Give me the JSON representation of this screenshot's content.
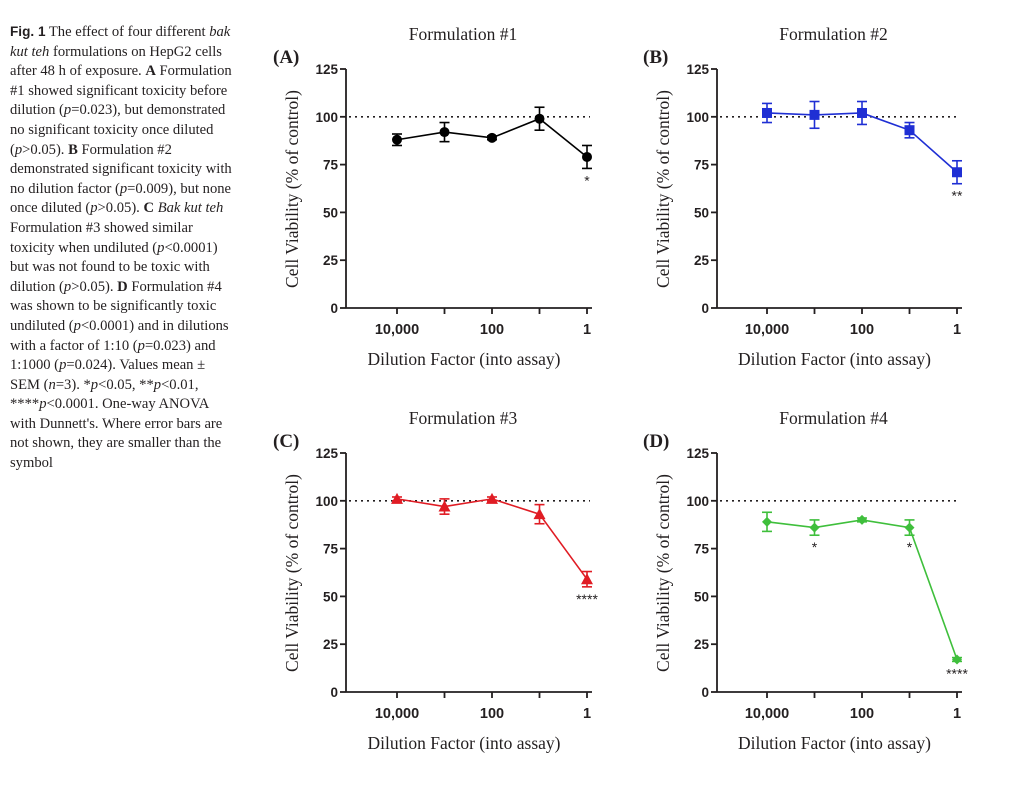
{
  "caption": {
    "label": "Fig. 1",
    "segments": [
      {
        "t": " The effect of four different "
      },
      {
        "t": "bak kut teh",
        "i": true
      },
      {
        "t": " formulations on HepG2 cells after 48 h of exposure. "
      },
      {
        "t": "A",
        "b": true
      },
      {
        "t": " Formulation #1 showed significant toxicity before dilution ("
      },
      {
        "t": "p",
        "i": true
      },
      {
        "t": "=0.023), but demonstrated no significant toxicity once diluted ("
      },
      {
        "t": "p",
        "i": true
      },
      {
        "t": ">0.05). "
      },
      {
        "t": "B",
        "b": true
      },
      {
        "t": " Formulation #2 demonstrated significant toxicity with no dilution factor ("
      },
      {
        "t": "p",
        "i": true
      },
      {
        "t": "=0.009), but none once diluted ("
      },
      {
        "t": "p",
        "i": true
      },
      {
        "t": ">0.05). "
      },
      {
        "t": "C",
        "b": true
      },
      {
        "t": " "
      },
      {
        "t": "Bak kut teh",
        "i": true
      },
      {
        "t": " Formulation #3 showed similar toxicity when undiluted ("
      },
      {
        "t": "p",
        "i": true
      },
      {
        "t": "<0.0001) but was not found to be toxic with dilution ("
      },
      {
        "t": "p",
        "i": true
      },
      {
        "t": ">0.05). "
      },
      {
        "t": "D",
        "b": true
      },
      {
        "t": " Formulation #4 was shown to be significantly toxic undiluted ("
      },
      {
        "t": "p",
        "i": true
      },
      {
        "t": "<0.0001) and in dilutions with a factor of 1:10 ("
      },
      {
        "t": "p",
        "i": true
      },
      {
        "t": "=0.023) and 1:1000 ("
      },
      {
        "t": "p",
        "i": true
      },
      {
        "t": "=0.024). Values mean ± SEM ("
      },
      {
        "t": "n",
        "i": true
      },
      {
        "t": "=3). *"
      },
      {
        "t": "p",
        "i": true
      },
      {
        "t": "<0.05, **"
      },
      {
        "t": "p",
        "i": true
      },
      {
        "t": "<0.01, ****"
      },
      {
        "t": "p",
        "i": true
      },
      {
        "t": "<0.0001. One-way ANOVA with Dunnett's. Where error bars are not shown, they are smaller than the symbol"
      }
    ]
  },
  "chart_data": [
    {
      "panel": "(A)",
      "type": "line",
      "title": "Formulation #1",
      "xlabel": "Dilution Factor (into assay)",
      "ylabel": "Cell Viability (% of control)",
      "x_scale": "log",
      "x": [
        10000,
        1000,
        100,
        10,
        1
      ],
      "x_tick_labels": {
        "10000": "10,000",
        "100": "100",
        "1": "1"
      },
      "ylim": [
        0,
        125
      ],
      "yticks": [
        0,
        25,
        50,
        75,
        100,
        125
      ],
      "reference_line": 100,
      "series": [
        {
          "name": "Formulation #1",
          "color": "#000000",
          "marker": "circle",
          "values": [
            88,
            92,
            89,
            99,
            79
          ],
          "sem": [
            3,
            5,
            1,
            6,
            6
          ],
          "significance": [
            "",
            "",
            "",
            "",
            "*"
          ]
        }
      ]
    },
    {
      "panel": "(B)",
      "type": "line",
      "title": "Formulation #2",
      "xlabel": "Dilution Factor (into assay)",
      "ylabel": "Cell Viability (% of control)",
      "x_scale": "log",
      "x": [
        10000,
        1000,
        100,
        10,
        1
      ],
      "x_tick_labels": {
        "10000": "10,000",
        "100": "100",
        "1": "1"
      },
      "ylim": [
        0,
        125
      ],
      "yticks": [
        0,
        25,
        50,
        75,
        100,
        125
      ],
      "reference_line": 100,
      "series": [
        {
          "name": "Formulation #2",
          "color": "#1f2fd4",
          "marker": "square",
          "values": [
            102,
            101,
            102,
            93,
            71
          ],
          "sem": [
            5,
            7,
            6,
            4,
            6
          ],
          "significance": [
            "",
            "",
            "",
            "",
            "**"
          ]
        }
      ]
    },
    {
      "panel": "(C)",
      "type": "line",
      "title": "Formulation #3",
      "xlabel": "Dilution Factor (into assay)",
      "ylabel": "Cell Viability (% of control)",
      "x_scale": "log",
      "x": [
        10000,
        1000,
        100,
        10,
        1
      ],
      "x_tick_labels": {
        "10000": "10,000",
        "100": "100",
        "1": "1"
      },
      "ylim": [
        0,
        125
      ],
      "yticks": [
        0,
        25,
        50,
        75,
        100,
        125
      ],
      "reference_line": 100,
      "series": [
        {
          "name": "Formulation #3",
          "color": "#e01c24",
          "marker": "triangle",
          "values": [
            101,
            97,
            101,
            93,
            59
          ],
          "sem": [
            1,
            4,
            1,
            5,
            4
          ],
          "significance": [
            "",
            "",
            "",
            "",
            "****"
          ]
        }
      ]
    },
    {
      "panel": "(D)",
      "type": "line",
      "title": "Formulation #4",
      "xlabel": "Dilution Factor (into assay)",
      "ylabel": "Cell Viability (% of control)",
      "x_scale": "log",
      "x": [
        10000,
        1000,
        100,
        10,
        1
      ],
      "x_tick_labels": {
        "10000": "10,000",
        "100": "100",
        "1": "1"
      },
      "ylim": [
        0,
        125
      ],
      "yticks": [
        0,
        25,
        50,
        75,
        100,
        125
      ],
      "reference_line": 100,
      "series": [
        {
          "name": "Formulation #4",
          "color": "#3fbf3c",
          "marker": "diamond",
          "values": [
            89,
            86,
            90,
            86,
            17
          ],
          "sem": [
            5,
            4,
            1,
            4,
            1
          ],
          "significance": [
            "",
            "*",
            "",
            "*",
            "****"
          ]
        }
      ]
    }
  ]
}
